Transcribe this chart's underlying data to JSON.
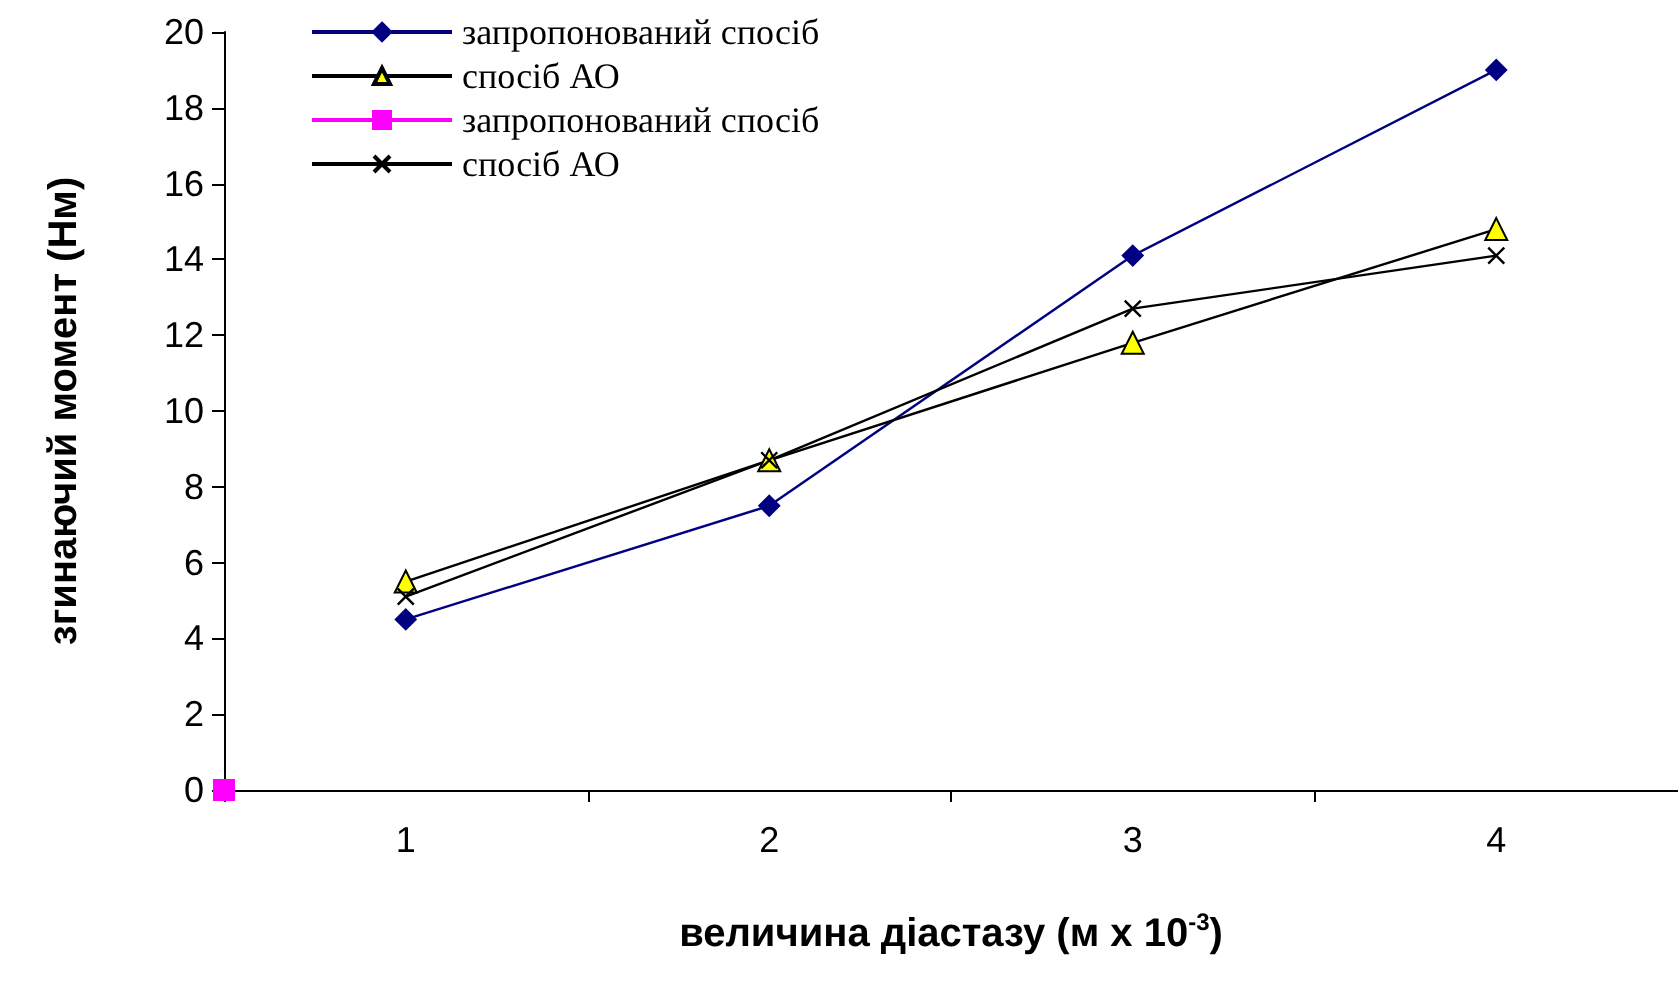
{
  "chart_data": {
    "type": "line",
    "xlabel": "величина діастазу (м x 10$^{-3}$)",
    "ylabel": "згинаючий момент (Нм)",
    "xlim": [
      0.5,
      4.5
    ],
    "xticks": [
      {
        "value": 0.5,
        "label": null
      },
      1,
      {
        "value": 1.5,
        "label": null
      },
      2,
      {
        "value": 2.5,
        "label": null
      },
      3,
      {
        "value": 3.5,
        "label": null
      },
      4,
      {
        "value": 4.5,
        "label": null
      }
    ],
    "ylim": [
      0,
      20
    ],
    "yticks": [
      0,
      2,
      4,
      6,
      8,
      10,
      12,
      14,
      16,
      18,
      20
    ],
    "grid": false,
    "legend": "top",
    "x": [
      1,
      2,
      3,
      4
    ],
    "series": [
      {
        "name": "запропонований спосіб",
        "color": "#000080",
        "marker": "diamond",
        "values": [
          4.5,
          7.5,
          14.1,
          19
        ]
      },
      {
        "name": "спосіб АО",
        "color": "#000000",
        "marker": "triangle",
        "values": [
          5.5,
          8.7,
          11.8,
          14.8
        ]
      },
      {
        "name": "запропонований спосіб",
        "color": "#ff00ff",
        "marker": "square",
        "x": [
          0.5
        ],
        "values": [
          0
        ]
      },
      {
        "name": "спосіб АО",
        "color": "#000000",
        "marker": "cross",
        "values": [
          5.1,
          8.7,
          12.7,
          14.1
        ]
      }
    ]
  }
}
